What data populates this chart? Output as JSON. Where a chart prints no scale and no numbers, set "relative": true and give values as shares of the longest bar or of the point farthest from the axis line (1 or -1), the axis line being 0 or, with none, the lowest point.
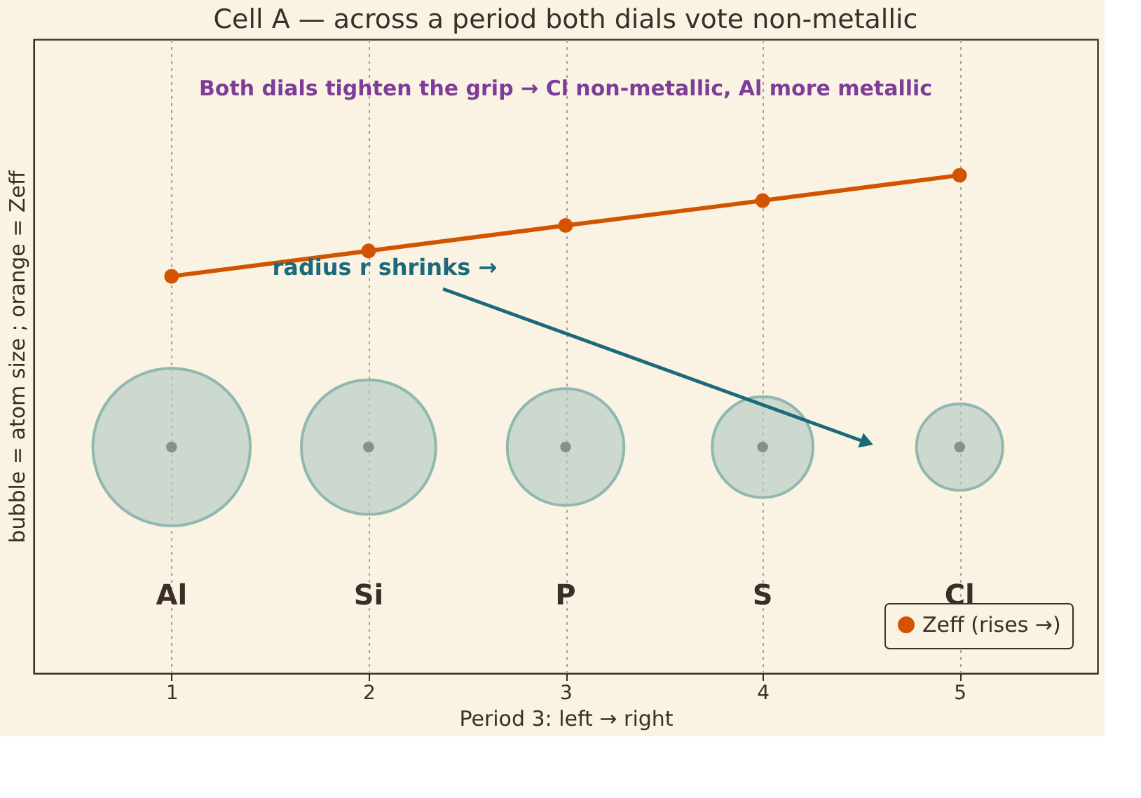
{
  "chart_data": {
    "type": "bubble",
    "title": "Cell A — across a period both dials vote non-metallic",
    "xlabel": "Period 3: left → right",
    "ylabel": "bubble = atom size ;  orange = Zeff",
    "x": [
      1,
      2,
      3,
      4,
      5
    ],
    "xlim": [
      0.3,
      5.7
    ],
    "xticks": [
      1,
      2,
      3,
      4,
      5
    ],
    "relative": true,
    "series": [
      {
        "color": "#b5c9c3",
        "values": [
          0.454,
          0.454,
          0.454,
          0.454,
          0.454
        ],
        "sizes": [
          1,
          0.73,
          0.55,
          0.41,
          0.3
        ]
      },
      {
        "type": "line",
        "name": "Zeff (rises →)",
        "color": "#d35400",
        "values": [
          0.797,
          0.848,
          0.899,
          0.949,
          1
        ]
      }
    ],
    "annotations": [
      "Both dials tighten the grip → Cl non-metallic, Al more metallic",
      "radius r shrinks →",
      "Al",
      "Si",
      "P",
      "S",
      "Cl"
    ],
    "grid": "x",
    "legend": "bottom right",
    "marker": "circle",
    "line_style": "solid"
  }
}
